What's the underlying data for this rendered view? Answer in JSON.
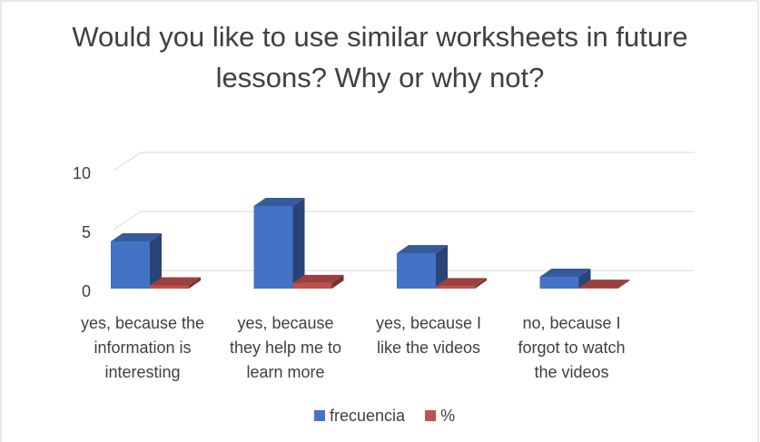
{
  "chart_data": {
    "type": "bar3d",
    "title": "Would you like to use similar worksheets in future lessons? Why or why not?",
    "categories": [
      "yes, because the information is interesting",
      "yes, because they help me to learn more",
      "yes, because I like the videos",
      "no, because I forgot to watch the videos"
    ],
    "series": [
      {
        "name": "frecuencia",
        "color": "#4472c4",
        "values": [
          4,
          7,
          3,
          1
        ]
      },
      {
        "name": "%",
        "color": "#c0504d",
        "values": [
          0.27,
          0.47,
          0.2,
          0.07
        ]
      }
    ],
    "ylim": [
      0,
      10
    ],
    "yticks": [
      0,
      5,
      10
    ],
    "grid": true,
    "legend": "bottom"
  }
}
